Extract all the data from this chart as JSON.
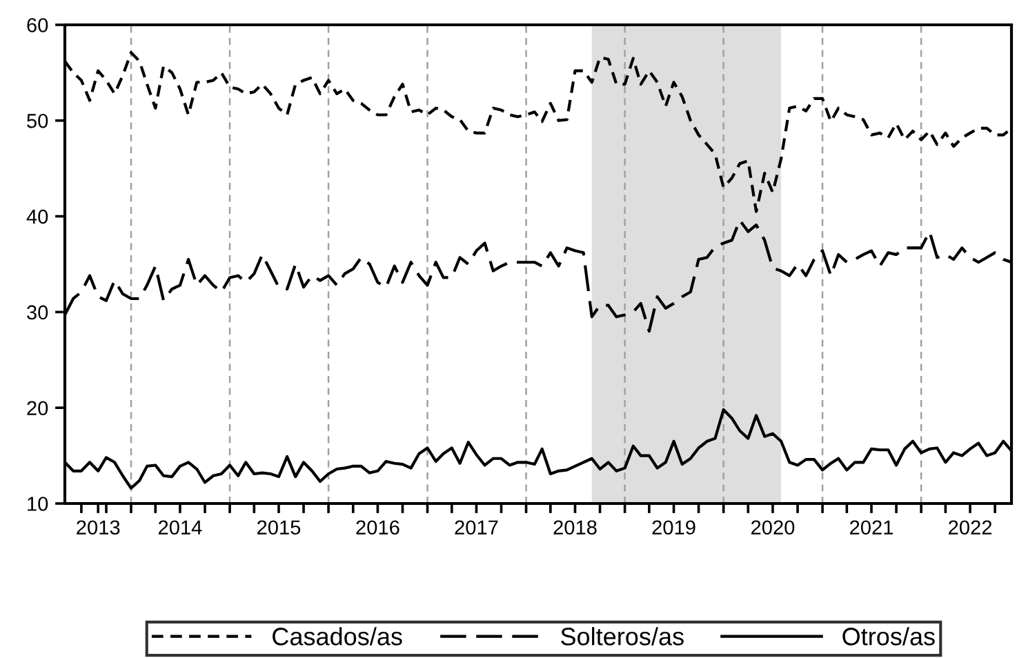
{
  "chart_data": {
    "type": "line",
    "x": [
      "2013-05",
      "2013-06",
      "2013-07",
      "2013-08",
      "2013-09",
      "2013-10",
      "2013-11",
      "2013-12",
      "2014-01",
      "2014-02",
      "2014-03",
      "2014-04",
      "2014-05",
      "2014-06",
      "2014-07",
      "2014-08",
      "2014-09",
      "2014-10",
      "2014-11",
      "2014-12",
      "2015-01",
      "2015-02",
      "2015-03",
      "2015-04",
      "2015-05",
      "2015-06",
      "2015-07",
      "2015-08",
      "2015-09",
      "2015-10",
      "2015-11",
      "2015-12",
      "2016-01",
      "2016-02",
      "2016-03",
      "2016-04",
      "2016-05",
      "2016-06",
      "2016-07",
      "2016-08",
      "2016-09",
      "2016-10",
      "2016-11",
      "2016-12",
      "2017-01",
      "2017-02",
      "2017-03",
      "2017-04",
      "2017-05",
      "2017-06",
      "2017-07",
      "2017-08",
      "2017-09",
      "2017-10",
      "2017-11",
      "2017-12",
      "2018-01",
      "2018-02",
      "2018-03",
      "2018-04",
      "2018-05",
      "2018-06",
      "2018-07",
      "2018-08",
      "2018-09",
      "2018-10",
      "2018-11",
      "2018-12",
      "2019-01",
      "2019-02",
      "2019-03",
      "2019-04",
      "2019-05",
      "2019-06",
      "2019-07",
      "2019-08",
      "2019-09",
      "2019-10",
      "2019-11",
      "2019-12",
      "2020-01",
      "2020-02",
      "2020-03",
      "2020-04",
      "2020-05",
      "2020-06",
      "2020-07",
      "2020-08",
      "2020-09",
      "2020-10",
      "2020-11",
      "2020-12",
      "2021-01",
      "2021-02",
      "2021-03",
      "2021-04",
      "2021-05",
      "2021-06",
      "2021-07",
      "2021-08",
      "2021-09",
      "2021-10",
      "2021-11",
      "2021-12",
      "2022-01",
      "2022-02",
      "2022-03",
      "2022-04",
      "2022-05",
      "2022-06",
      "2022-07",
      "2022-08",
      "2022-09",
      "2022-10",
      "2022-11",
      "2022-12"
    ],
    "series": [
      {
        "name": "Casados/as",
        "color": "#000000",
        "line_style": "dotted",
        "values": [
          56.2,
          55.0,
          54.2,
          52.1,
          55.2,
          54.2,
          52.8,
          54.7,
          57.1,
          56.2,
          53.8,
          51.3,
          55.7,
          55.0,
          53.3,
          50.6,
          54.0,
          54.0,
          54.2,
          55.0,
          53.5,
          53.3,
          52.8,
          53.0,
          53.8,
          52.8,
          51.3,
          50.6,
          53.8,
          54.2,
          54.5,
          52.8,
          54.2,
          52.8,
          53.3,
          52.1,
          51.8,
          51.1,
          50.6,
          50.6,
          52.5,
          53.8,
          50.9,
          51.1,
          50.6,
          51.3,
          51.1,
          50.4,
          50.1,
          48.9,
          48.7,
          48.7,
          51.3,
          51.1,
          50.6,
          50.4,
          50.6,
          50.9,
          49.9,
          51.8,
          50.0,
          50.1,
          55.2,
          55.2,
          54.0,
          56.6,
          56.4,
          53.8,
          53.8,
          56.5,
          53.8,
          55.2,
          54.0,
          51.5,
          54.0,
          52.5,
          50.0,
          48.5,
          47.5,
          46.5,
          43.0,
          44.0,
          45.5,
          45.8,
          40.5,
          44.5,
          42.5,
          46.0,
          51.3,
          51.5,
          51.0,
          52.3,
          52.3,
          49.9,
          51.3,
          50.6,
          50.4,
          50.1,
          48.5,
          48.7,
          48.2,
          49.7,
          48.0,
          48.9,
          48.0,
          48.9,
          47.5,
          48.7,
          47.3,
          48.2,
          48.7,
          49.2,
          49.2,
          48.5,
          48.5,
          49.2
        ]
      },
      {
        "name": "Solteros/as",
        "color": "#000000",
        "line_style": "dashed",
        "values": [
          29.7,
          31.4,
          32.1,
          33.8,
          31.6,
          31.2,
          33.3,
          31.9,
          31.4,
          31.4,
          32.8,
          34.8,
          31.2,
          32.4,
          32.8,
          35.5,
          32.8,
          33.8,
          32.8,
          32.1,
          33.6,
          33.8,
          33.1,
          34.0,
          36.0,
          34.3,
          32.6,
          32.4,
          35.0,
          32.6,
          33.8,
          33.3,
          33.8,
          32.8,
          34.0,
          34.5,
          35.7,
          35.0,
          33.1,
          32.6,
          34.8,
          33.1,
          35.2,
          33.8,
          32.8,
          35.2,
          33.6,
          33.6,
          35.7,
          35.0,
          36.4,
          37.2,
          34.3,
          34.8,
          35.2,
          35.2,
          35.2,
          35.2,
          34.8,
          36.2,
          34.8,
          36.7,
          36.4,
          36.2,
          29.5,
          30.7,
          30.7,
          29.5,
          29.7,
          30.0,
          30.9,
          28.0,
          31.6,
          30.4,
          30.9,
          31.6,
          32.1,
          35.5,
          35.7,
          36.8,
          37.2,
          37.5,
          39.6,
          38.4,
          39.1,
          37.5,
          34.6,
          34.3,
          33.8,
          35.0,
          33.8,
          35.5,
          36.4,
          33.8,
          36.0,
          35.2,
          35.5,
          36.0,
          36.4,
          34.8,
          36.2,
          36.0,
          36.7,
          36.7,
          36.7,
          38.4,
          35.7,
          36.0,
          35.5,
          36.7,
          35.7,
          35.2,
          35.7,
          36.2,
          35.5,
          35.2
        ]
      },
      {
        "name": "Otros/as",
        "color": "#000000",
        "line_style": "solid",
        "values": [
          14.3,
          13.4,
          13.4,
          14.3,
          13.4,
          14.8,
          14.3,
          12.9,
          11.6,
          12.4,
          13.9,
          14.0,
          12.9,
          12.8,
          13.9,
          14.3,
          13.6,
          12.2,
          12.9,
          13.1,
          14.0,
          12.9,
          14.3,
          13.1,
          13.2,
          13.1,
          12.8,
          14.9,
          12.8,
          14.3,
          13.4,
          12.3,
          13.1,
          13.6,
          13.7,
          13.9,
          13.9,
          13.2,
          13.4,
          14.4,
          14.2,
          14.1,
          13.7,
          15.2,
          15.8,
          14.4,
          15.2,
          15.8,
          14.2,
          16.4,
          15.1,
          14.0,
          14.7,
          14.7,
          14.0,
          14.3,
          14.3,
          14.1,
          15.7,
          13.1,
          13.4,
          13.5,
          13.9,
          14.3,
          14.7,
          13.6,
          14.3,
          13.4,
          13.7,
          16.0,
          15.0,
          15.0,
          13.7,
          14.3,
          16.5,
          14.1,
          14.7,
          15.8,
          16.5,
          16.8,
          19.8,
          18.9,
          17.6,
          16.8,
          19.2,
          17.0,
          17.3,
          16.5,
          14.3,
          14.0,
          14.6,
          14.6,
          13.5,
          14.2,
          14.7,
          13.5,
          14.3,
          14.3,
          15.7,
          15.6,
          15.6,
          14.0,
          15.7,
          16.5,
          15.3,
          15.7,
          15.8,
          14.3,
          15.3,
          15.0,
          15.7,
          16.3,
          15.0,
          15.3,
          16.5,
          15.5
        ]
      }
    ],
    "xlim": [
      "2013-05",
      "2022-12"
    ],
    "xticks": [
      {
        "value": "2013-07",
        "label": null
      },
      {
        "value": "2013-09",
        "label": "2013"
      },
      {
        "value": "2013-10",
        "label": null
      },
      {
        "value": "2014-01",
        "label": null
      },
      {
        "value": "2014-04",
        "label": null
      },
      {
        "value": "2014-07",
        "label": "2014"
      },
      {
        "value": "2014-10",
        "label": null
      },
      {
        "value": "2015-01",
        "label": null
      },
      {
        "value": "2015-04",
        "label": null
      },
      {
        "value": "2015-07",
        "label": "2015"
      },
      {
        "value": "2015-10",
        "label": null
      },
      {
        "value": "2016-01",
        "label": null
      },
      {
        "value": "2016-04",
        "label": null
      },
      {
        "value": "2016-07",
        "label": "2016"
      },
      {
        "value": "2016-10",
        "label": null
      },
      {
        "value": "2017-01",
        "label": null
      },
      {
        "value": "2017-04",
        "label": null
      },
      {
        "value": "2017-07",
        "label": "2017"
      },
      {
        "value": "2017-10",
        "label": null
      },
      {
        "value": "2018-01",
        "label": null
      },
      {
        "value": "2018-04",
        "label": null
      },
      {
        "value": "2018-07",
        "label": "2018"
      },
      {
        "value": "2018-10",
        "label": null
      },
      {
        "value": "2019-01",
        "label": null
      },
      {
        "value": "2019-04",
        "label": null
      },
      {
        "value": "2019-07",
        "label": "2019"
      },
      {
        "value": "2019-10",
        "label": null
      },
      {
        "value": "2020-01",
        "label": null
      },
      {
        "value": "2020-04",
        "label": null
      },
      {
        "value": "2020-07",
        "label": "2020"
      },
      {
        "value": "2020-10",
        "label": null
      },
      {
        "value": "2021-01",
        "label": null
      },
      {
        "value": "2021-04",
        "label": null
      },
      {
        "value": "2021-07",
        "label": "2021"
      },
      {
        "value": "2021-10",
        "label": null
      },
      {
        "value": "2022-01",
        "label": null
      },
      {
        "value": "2022-04",
        "label": null
      },
      {
        "value": "2022-07",
        "label": "2022"
      },
      {
        "value": "2022-10",
        "label": null
      }
    ],
    "ylim": [
      10,
      60
    ],
    "yticks": [
      10,
      20,
      30,
      40,
      50,
      60
    ],
    "ref_lines": [
      {
        "axis": "x",
        "value": "2014-01",
        "color": "#a0a0a0",
        "line_style": "dashed"
      },
      {
        "axis": "x",
        "value": "2015-01",
        "color": "#a0a0a0",
        "line_style": "dashed"
      },
      {
        "axis": "x",
        "value": "2016-01",
        "color": "#a0a0a0",
        "line_style": "dashed"
      },
      {
        "axis": "x",
        "value": "2017-01",
        "color": "#a0a0a0",
        "line_style": "dashed"
      },
      {
        "axis": "x",
        "value": "2018-01",
        "color": "#a0a0a0",
        "line_style": "dashed"
      },
      {
        "axis": "x",
        "value": "2019-01",
        "color": "#a0a0a0",
        "line_style": "dashed"
      },
      {
        "axis": "x",
        "value": "2020-01",
        "color": "#a0a0a0",
        "line_style": "dashed"
      },
      {
        "axis": "x",
        "value": "2021-01",
        "color": "#a0a0a0",
        "line_style": "dashed"
      },
      {
        "axis": "x",
        "value": "2022-01",
        "color": "#a0a0a0",
        "line_style": "dashed"
      }
    ],
    "bands": [
      {
        "axis": "x",
        "from": "2018-09",
        "to": "2020-08",
        "color": "#dedede"
      }
    ],
    "legend": "bottom",
    "grid": false,
    "marker": "none"
  }
}
